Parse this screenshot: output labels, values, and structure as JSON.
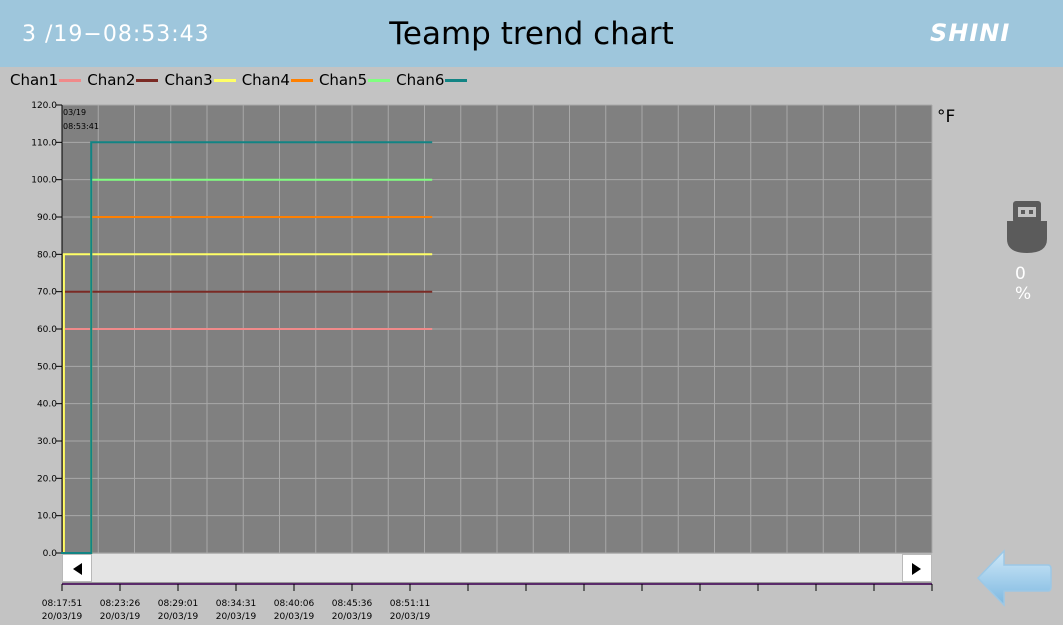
{
  "header": {
    "clock": "3 /19−08:53:43",
    "title": "Teamp trend chart",
    "logo": "SHINI"
  },
  "legend": [
    {
      "label": "Chan1",
      "color": "#f08a8a"
    },
    {
      "label": "Chan2",
      "color": "#7a2a24"
    },
    {
      "label": "Chan3",
      "color": "#ffff66"
    },
    {
      "label": "Chan4",
      "color": "#ff8000"
    },
    {
      "label": "Chan5",
      "color": "#80ff80"
    },
    {
      "label": "Chan6",
      "color": "#128484"
    }
  ],
  "unit": "°F",
  "usb": {
    "icon": "usb-drive-icon",
    "percent": "0 %"
  },
  "scrollbar": {
    "left_icon": "arrow-left-icon",
    "right_icon": "arrow-right-icon"
  },
  "back_button": {
    "icon": "back-arrow-icon"
  },
  "chart_data": {
    "type": "line",
    "title": "",
    "ylabel": "°F",
    "ylim": [
      0,
      120
    ],
    "yticks": [
      "0.0",
      "10.0",
      "20.0",
      "30.0",
      "40.0",
      "50.0",
      "60.0",
      "70.0",
      "80.0",
      "90.0",
      "100.0",
      "110.0",
      "120.0"
    ],
    "xticks": [
      {
        "time": "08:17:51",
        "date": "20/03/19"
      },
      {
        "time": "08:23:26",
        "date": "20/03/19"
      },
      {
        "time": "08:29:01",
        "date": "20/03/19"
      },
      {
        "time": "08:34:31",
        "date": "20/03/19"
      },
      {
        "time": "08:40:06",
        "date": "20/03/19"
      },
      {
        "time": "08:45:36",
        "date": "20/03/19"
      },
      {
        "time": "08:51:11",
        "date": "20/03/19"
      }
    ],
    "cursor_label": {
      "date": "03/19",
      "time": "08:53:41"
    },
    "grid": true,
    "series": [
      {
        "name": "Chan1",
        "color": "#f08a8a",
        "points": [
          [
            0,
            0
          ],
          [
            0.05,
            0
          ],
          [
            0.05,
            60
          ],
          [
            6.4,
            60
          ]
        ]
      },
      {
        "name": "Chan2",
        "color": "#7a2a24",
        "points": [
          [
            0,
            0
          ],
          [
            0.05,
            0
          ],
          [
            0.05,
            70
          ],
          [
            6.4,
            70
          ]
        ]
      },
      {
        "name": "Chan3",
        "color": "#ffff66",
        "points": [
          [
            0,
            0
          ],
          [
            0.05,
            0
          ],
          [
            0.05,
            80
          ],
          [
            6.4,
            80
          ]
        ]
      },
      {
        "name": "Chan4",
        "color": "#ff8000",
        "points": [
          [
            0,
            0
          ],
          [
            0.52,
            0
          ],
          [
            0.52,
            90
          ],
          [
            6.4,
            90
          ]
        ]
      },
      {
        "name": "Chan5",
        "color": "#80ff80",
        "points": [
          [
            0,
            0
          ],
          [
            0.52,
            0
          ],
          [
            0.52,
            100
          ],
          [
            6.4,
            100
          ]
        ]
      },
      {
        "name": "Chan6",
        "color": "#128484",
        "points": [
          [
            0,
            0
          ],
          [
            0.52,
            0
          ],
          [
            0.52,
            110
          ],
          [
            6.4,
            110
          ]
        ]
      }
    ]
  }
}
